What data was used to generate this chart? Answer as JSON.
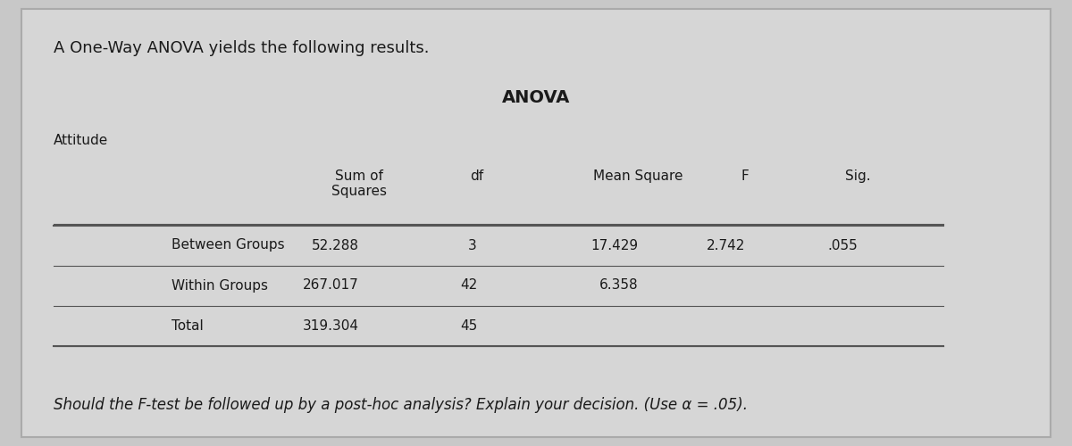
{
  "title_text": "A One-Way ANOVA yields the following results.",
  "anova_title": "ANOVA",
  "variable_label": "Attitude",
  "col_headers": [
    "",
    "Sum of\nSquares",
    "df",
    "Mean Square",
    "F",
    "Sig."
  ],
  "rows": [
    [
      "Between Groups",
      "52.288",
      "3",
      "17.429",
      "2.742",
      ".055"
    ],
    [
      "Within Groups",
      "267.017",
      "42",
      "6.358",
      "",
      ""
    ],
    [
      "Total",
      "319.304",
      "45",
      "",
      "",
      ""
    ]
  ],
  "footer_text": "Should the F-test be followed up by a post-hoc analysis? Explain your decision. (Use α = .05).",
  "bg_color": "#c8c8c8",
  "table_bg": "#d8d8d8",
  "cell_bg_even": "#cbcbcb",
  "cell_bg_odd": "#d4d4d4",
  "header_bg": "#c8c8c8",
  "border_color": "#555555",
  "text_color": "#1a1a1a",
  "title_fontsize": 13,
  "header_fontsize": 11,
  "cell_fontsize": 11,
  "footer_fontsize": 12
}
